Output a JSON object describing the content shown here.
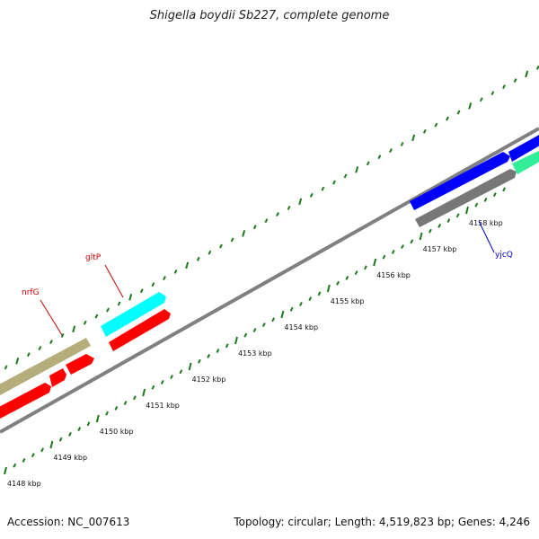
{
  "title": "Shigella boydii Sb227, complete genome",
  "footer": {
    "accession": "Accession: NC_007613",
    "topology": "Topology: circular; Length: 4,519,823 bp; Genes: 4,246"
  },
  "colors": {
    "backbone": "#808080",
    "tick_marks": "#1a7a1a",
    "label_red": "#cc0000",
    "label_blue": "#0000cc"
  },
  "scale": {
    "unit": "kbp",
    "labeled_positions": [
      4148,
      4149,
      4150,
      4151,
      4152,
      4153,
      4154,
      4155,
      4156,
      4157,
      4158
    ]
  },
  "features": [
    {
      "name": "nrfG",
      "color": "#b5ae7a",
      "strand": "forward",
      "shape": "box",
      "label_color": "#cc0000"
    },
    {
      "name": "",
      "color": "#ff0000",
      "strand": "reverse",
      "shape": "arrow"
    },
    {
      "name": "",
      "color": "#ff0000",
      "strand": "reverse",
      "shape": "arrow"
    },
    {
      "name": "",
      "color": "#ff0000",
      "strand": "reverse",
      "shape": "arrow"
    },
    {
      "name": "gltP",
      "color": "#00ffff",
      "strand": "forward",
      "shape": "arrow",
      "label_color": "#cc0000"
    },
    {
      "name": "",
      "color": "#ff0000",
      "strand": "reverse",
      "shape": "arrow"
    },
    {
      "name": "",
      "color": "#0000ff",
      "strand": "forward",
      "shape": "arrow"
    },
    {
      "name": "",
      "color": "#0000ff",
      "strand": "forward",
      "shape": "box"
    },
    {
      "name": "yjcQ",
      "color": "#777777",
      "strand": "reverse",
      "shape": "arrow",
      "label_color": "#0000cc"
    },
    {
      "name": "",
      "color": "#33ee99",
      "strand": "forward",
      "shape": "box"
    }
  ]
}
